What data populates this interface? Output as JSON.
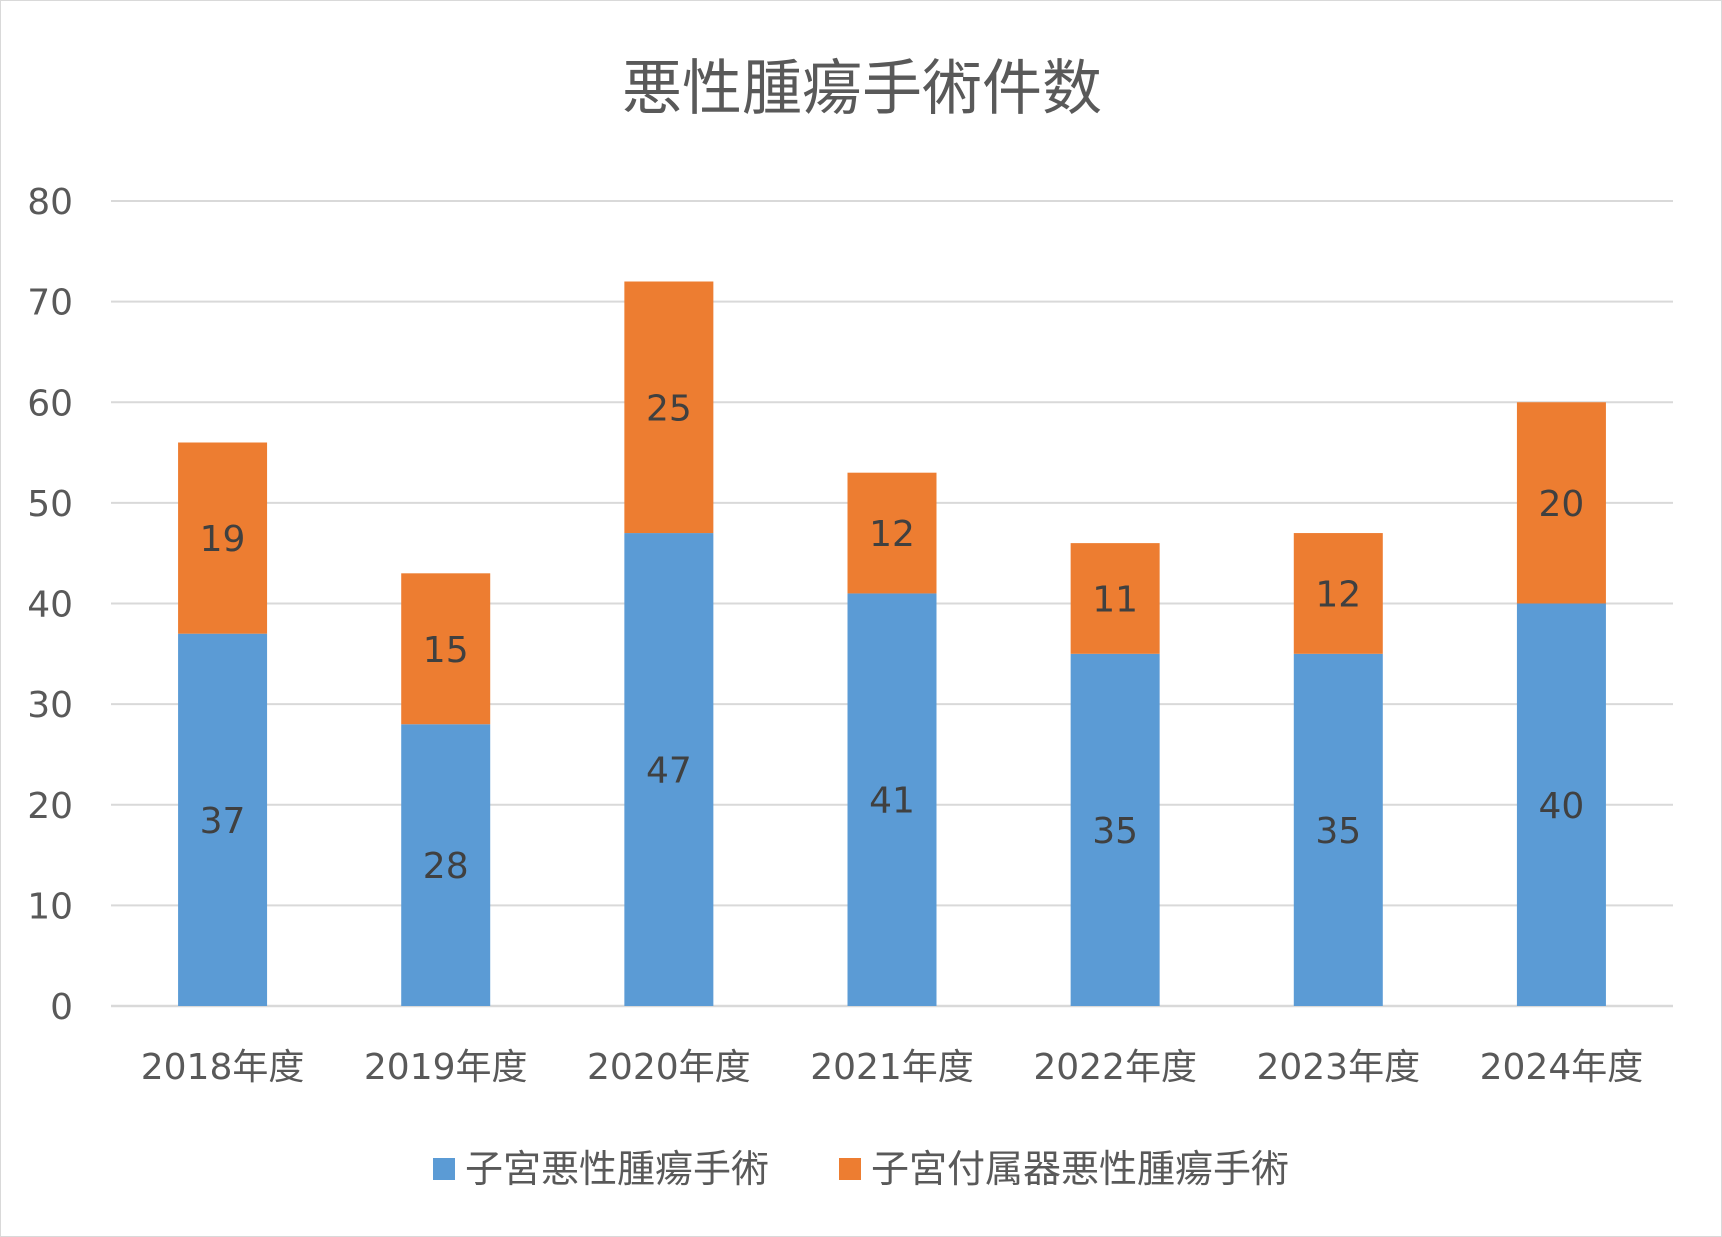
{
  "chart_data": {
    "type": "bar",
    "stacked": true,
    "title": "悪性腫瘍手術件数",
    "xlabel": "",
    "ylabel": "",
    "categories": [
      "2018年度",
      "2019年度",
      "2020年度",
      "2021年度",
      "2022年度",
      "2023年度",
      "2024年度"
    ],
    "series": [
      {
        "name": "子宮悪性腫瘍手術",
        "color": "#5B9BD5",
        "values": [
          37,
          28,
          47,
          41,
          35,
          35,
          40
        ]
      },
      {
        "name": "子宮付属器悪性腫瘍手術",
        "color": "#ED7D31",
        "values": [
          19,
          15,
          25,
          12,
          11,
          12,
          20
        ]
      }
    ],
    "ylim": [
      0,
      80
    ],
    "yticks": [
      0,
      10,
      20,
      30,
      40,
      50,
      60,
      70,
      80
    ],
    "grid": true,
    "legend_position": "bottom",
    "data_labels": true
  }
}
